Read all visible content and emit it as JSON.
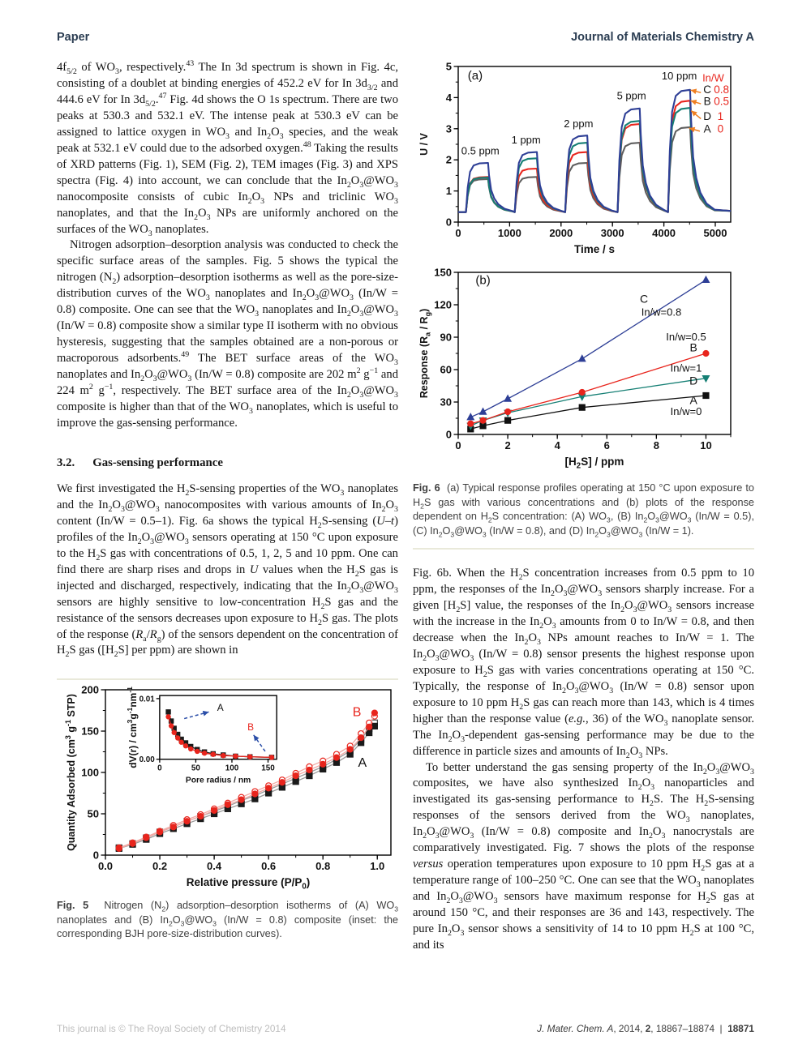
{
  "header": {
    "left": "Paper",
    "right": "Journal of Materials Chemistry A"
  },
  "left_column": {
    "para1_html": "4f<sub>5/2</sub> of WO<sub>3</sub>, respectively.<sup>43</sup> The In 3d spectrum is shown in Fig. 4c, consisting of a doublet at binding energies of 452.2 eV for In 3d<sub>3/2</sub> and 444.6 eV for In 3d<sub>5/2</sub>.<sup>47</sup> Fig. 4d shows the O 1s spectrum. There are two peaks at 530.3 and 532.1 eV. The intense peak at 530.3 eV can be assigned to lattice oxygen in WO<sub>3</sub> and In<sub>2</sub>O<sub>3</sub> species, and the weak peak at 532.1 eV could due to the adsorbed oxygen.<sup>48</sup> Taking the results of XRD patterns (Fig. 1), SEM (Fig. 2), TEM images (Fig. 3) and XPS spectra (Fig. 4) into account, we can conclude that the In<sub>2</sub>O<sub>3</sub>@WO<sub>3</sub> nanocomposite consists of cubic In<sub>2</sub>O<sub>3</sub> NPs and triclinic WO<sub>3</sub> nanoplates, and that the In<sub>2</sub>O<sub>3</sub> NPs are uniformly anchored on the surfaces of the WO<sub>3</sub> nanoplates.",
    "para2_html": "Nitrogen adsorption–desorption analysis was conducted to check the specific surface areas of the samples. Fig. 5 shows the typical the nitrogen (N<sub>2</sub>) adsorption–desorption isotherms as well as the pore-size-distribution curves of the WO<sub>3</sub> nanoplates and In<sub>2</sub>O<sub>3</sub>@WO<sub>3</sub> (In/W = 0.8) composite. One can see that the WO<sub>3</sub> nanoplates and In<sub>2</sub>O<sub>3</sub>@WO<sub>3</sub> (In/W = 0.8) composite show a similar type II isotherm with no obvious hysteresis, suggesting that the samples obtained are a non-porous or macroporous adsorbents.<sup>49</sup> The BET surface areas of the WO<sub>3</sub> nanoplates and In<sub>2</sub>O<sub>3</sub>@WO<sub>3</sub> (In/W = 0.8) composite are 202 m<sup>2</sup> g<sup>−1</sup> and 224 m<sup>2</sup> g<sup>−1</sup>, respectively. The BET surface area of the In<sub>2</sub>O<sub>3</sub>@WO<sub>3</sub> composite is higher than that of the WO<sub>3</sub> nanoplates, which is useful to improve the gas-sensing performance.",
    "section_number": "3.2.",
    "section_title": "Gas-sensing performance",
    "para3_html": "We first investigated the H<sub>2</sub>S-sensing properties of the WO<sub>3</sub> nanoplates and the In<sub>2</sub>O<sub>3</sub>@WO<sub>3</sub> nanocomposites with various amounts of In<sub>2</sub>O<sub>3</sub> content (In/W = 0.5–1). Fig. 6a shows the typical H<sub>2</sub>S-sensing (<i>U–t</i>) profiles of the In<sub>2</sub>O<sub>3</sub>@WO<sub>3</sub> sensors operating at 150 °C upon exposure to the H<sub>2</sub>S gas with concentrations of 0.5, 1, 2, 5 and 10 ppm. One can find there are sharp rises and drops in <i>U</i> values when the H<sub>2</sub>S gas is injected and discharged, respectively, indicating that the In<sub>2</sub>O<sub>3</sub>@WO<sub>3</sub> sensors are highly sensitive to low-concentration H<sub>2</sub>S gas and the resistance of the sensors decreases upon exposure to H<sub>2</sub>S gas. The plots of the response (<i>R</i><sub>a</sub>/<i>R</i><sub>g</sub>) of the sensors dependent on the concentration of H<sub>2</sub>S gas ([H<sub>2</sub>S] per ppm) are shown in",
    "fig5_caption_html": "<b>Fig. 5</b>&nbsp;&nbsp;Nitrogen (N<sub>2</sub>) adsorption–desorption isotherms of (A) WO<sub>3</sub> nanoplates and (B) In<sub>2</sub>O<sub>3</sub>@WO<sub>3</sub> (In/W = 0.8) composite (inset: the corresponding BJH pore-size-distribution curves)."
  },
  "right_column": {
    "fig6_caption_html": "<b>Fig. 6</b>&nbsp;&nbsp;(a) Typical response profiles operating at 150 °C upon exposure to H<sub>2</sub>S gas with various concentrations and (b) plots of the response dependent on H<sub>2</sub>S concentration: (A) WO<sub>3</sub>, (B) In<sub>2</sub>O<sub>3</sub>@WO<sub>3</sub> (In/W = 0.5), (C) In<sub>2</sub>O<sub>3</sub>@WO<sub>3</sub> (In/W = 0.8), and (D) In<sub>2</sub>O<sub>3</sub>@WO<sub>3</sub> (In/W = 1).",
    "para1_html": "Fig. 6b. When the H<sub>2</sub>S concentration increases from 0.5 ppm to 10 ppm, the responses of the In<sub>2</sub>O<sub>3</sub>@WO<sub>3</sub> sensors sharply increase. For a given [H<sub>2</sub>S] value, the responses of the In<sub>2</sub>O<sub>3</sub>@WO<sub>3</sub> sensors increase with the increase in the In<sub>2</sub>O<sub>3</sub> amounts from 0 to In/W = 0.8, and then decrease when the In<sub>2</sub>O<sub>3</sub> NPs amount reaches to In/W = 1. The In<sub>2</sub>O<sub>3</sub>@WO<sub>3</sub> (In/W = 0.8) sensor presents the highest response upon exposure to H<sub>2</sub>S gas with varies concentrations operating at 150 °C. Typically, the response of In<sub>2</sub>O<sub>3</sub>@WO<sub>3</sub> (In/W = 0.8) sensor upon exposure to 10 ppm H<sub>2</sub>S gas can reach more than 143, which is 4 times higher than the response value (<i>e.g.</i>, 36) of the WO<sub>3</sub> nanoplate sensor. The In<sub>2</sub>O<sub>3</sub>-dependent gas-sensing performance may be due to the difference in particle sizes and amounts of In<sub>2</sub>O<sub>3</sub> NPs.",
    "para2_html": "To better understand the gas sensing property of the In<sub>2</sub>O<sub>3</sub>@WO<sub>3</sub> composites, we have also synthesized In<sub>2</sub>O<sub>3</sub> nanoparticles and investigated its gas-sensing performance to H<sub>2</sub>S. The H<sub>2</sub>S-sensing responses of the sensors derived from the WO<sub>3</sub> nanoplates, In<sub>2</sub>O<sub>3</sub>@WO<sub>3</sub> (In/W = 0.8) composite and In<sub>2</sub>O<sub>3</sub> nanocrystals are comparatively investigated. Fig. 7 shows the plots of the response <i>versus</i> operation temperatures upon exposure to 10 ppm H<sub>2</sub>S gas at a temperature range of 100–250 °C. One can see that the WO<sub>3</sub> nanoplates and In<sub>2</sub>O<sub>3</sub>@WO<sub>3</sub> sensors have maximum response for H<sub>2</sub>S gas at around 150 °C, and their responses are 36 and 143, respectively. The pure In<sub>2</sub>O<sub>3</sub> sensor shows a sensitivity of 14 to 10 ppm H<sub>2</sub>S at 100 °C, and its"
  },
  "footer": {
    "left": "This journal is © The Royal Society of Chemistry 2014",
    "right_html": "<i>J. Mater. Chem. A</i>, 2014, <b>2</b>, 18867–18874&nbsp;&nbsp;|&nbsp;&nbsp;<b>18871</b>"
  },
  "chart_data": [
    {
      "id": "fig6a",
      "type": "line",
      "panel": "(a)",
      "xlabel": "Time / s",
      "ylabel": "U / V",
      "xlim": [
        0,
        5300
      ],
      "ylim": [
        0,
        5
      ],
      "xticks": [
        0,
        1000,
        2000,
        3000,
        4000,
        5000
      ],
      "yticks": [
        0,
        1,
        2,
        3,
        4,
        5
      ],
      "xminor": 500,
      "yminor": 0.5,
      "grid": false,
      "legend_position": "inside-right",
      "pulse": {
        "starts": [
          150,
          1100,
          2080,
          3100,
          4080
        ],
        "plateau": 430,
        "baseline": 0.32,
        "concentrations_ppm": [
          0.5,
          1,
          2,
          5,
          10
        ]
      },
      "series": [
        {
          "name": "A",
          "inw": "0",
          "color": "#5f5f5f",
          "peaks": [
            1.38,
            1.45,
            1.9,
            2.55,
            3.05
          ]
        },
        {
          "name": "B",
          "inw": "0.5",
          "color": "#e8251d",
          "peaks": [
            1.45,
            1.72,
            2.25,
            3.15,
            3.9
          ]
        },
        {
          "name": "D",
          "inw": "1",
          "color": "#157f74",
          "peaks": [
            1.43,
            2.05,
            2.55,
            3.25,
            3.67
          ]
        },
        {
          "name": "C",
          "inw": "0.8",
          "color": "#2e3f96",
          "peaks": [
            1.9,
            2.25,
            2.78,
            3.65,
            4.25
          ]
        }
      ],
      "annotations": [
        {
          "text": "(a)",
          "x": 330,
          "y": 4.58,
          "size": 15
        },
        {
          "text": "0.5 ppm",
          "x": 430,
          "y": 2.18
        },
        {
          "text": "1 ppm",
          "x": 1320,
          "y": 2.52
        },
        {
          "text": "2 ppm",
          "x": 2340,
          "y": 3.05
        },
        {
          "text": "5 ppm",
          "x": 3370,
          "y": 3.95
        },
        {
          "text": "10 ppm",
          "x": 4300,
          "y": 4.58
        },
        {
          "text": "In/W",
          "x": 4960,
          "y": 4.52,
          "color": "#e8251d"
        },
        {
          "text": "C",
          "x": 4845,
          "y": 4.14,
          "size": 13.5
        },
        {
          "text": "0.8",
          "x": 5120,
          "y": 4.14,
          "color": "#e8251d",
          "size": 13.5
        },
        {
          "text": "B",
          "x": 4845,
          "y": 3.76,
          "size": 13.5
        },
        {
          "text": "0.5",
          "x": 5120,
          "y": 3.76,
          "color": "#e8251d",
          "size": 13.5
        },
        {
          "text": "D",
          "x": 4845,
          "y": 3.28,
          "size": 13.5
        },
        {
          "text": "1",
          "x": 5100,
          "y": 3.28,
          "color": "#e8251d",
          "size": 13.5
        },
        {
          "text": "A",
          "x": 4845,
          "y": 2.88,
          "size": 13.5
        },
        {
          "text": "0",
          "x": 5100,
          "y": 2.88,
          "color": "#e8251d",
          "size": 13.5
        }
      ],
      "arrows": [
        {
          "x1": 4720,
          "y1": 4.16,
          "x2": 4520,
          "y2": 4.24,
          "color": "#ef7f22"
        },
        {
          "x1": 4720,
          "y1": 3.8,
          "x2": 4520,
          "y2": 3.9,
          "color": "#ef7f22"
        },
        {
          "x1": 4720,
          "y1": 3.32,
          "x2": 4530,
          "y2": 3.58,
          "color": "#ef7f22"
        },
        {
          "x1": 4700,
          "y1": 2.92,
          "x2": 4490,
          "y2": 3.02,
          "color": "#ef7f22"
        }
      ]
    },
    {
      "id": "fig6b",
      "type": "line",
      "panel": "(b)",
      "xlabel": "[H~2~S] / ppm",
      "ylabel": "Response (R~a~ / R~g~)",
      "xlim": [
        0,
        11
      ],
      "ylim": [
        0,
        150
      ],
      "xticks": [
        0,
        2,
        4,
        6,
        8,
        10
      ],
      "yticks": [
        0,
        30,
        60,
        90,
        120,
        150
      ],
      "xminor": 1,
      "yminor": 15,
      "grid": false,
      "x": [
        0.5,
        1,
        2,
        5,
        10
      ],
      "series": [
        {
          "name": "A",
          "label": "In/w=0",
          "color": "#111111",
          "marker": "square",
          "values": [
            5,
            8,
            13,
            25,
            36
          ]
        },
        {
          "name": "D",
          "label": "In/w=1",
          "color": "#157f74",
          "marker": "triangle-down",
          "values": [
            8,
            13,
            20,
            35,
            52
          ]
        },
        {
          "name": "B",
          "label": "In/w=0.5",
          "color": "#e8251d",
          "marker": "circle",
          "values": [
            10,
            13,
            21,
            39,
            75
          ]
        },
        {
          "name": "C",
          "label": "In/w=0.8",
          "color": "#2e3f96",
          "marker": "triangle-up",
          "values": [
            16,
            21,
            33,
            70,
            143
          ]
        }
      ],
      "annotations": [
        {
          "text": "(b)",
          "x": 1.0,
          "y": 139,
          "size": 15
        },
        {
          "text": "C",
          "x": 7.5,
          "y": 122,
          "size": 14
        },
        {
          "text": "In/w=0.8",
          "x": 8.2,
          "y": 110
        },
        {
          "text": "In/w=0.5",
          "x": 9.2,
          "y": 87
        },
        {
          "text": "B",
          "x": 9.5,
          "y": 77,
          "size": 14
        },
        {
          "text": "In/w=1",
          "x": 9.2,
          "y": 58
        },
        {
          "text": "D",
          "x": 9.5,
          "y": 46,
          "size": 14
        },
        {
          "text": "A",
          "x": 9.5,
          "y": 28,
          "size": 14
        },
        {
          "text": "In/w=0",
          "x": 9.2,
          "y": 18
        }
      ]
    },
    {
      "id": "fig5",
      "type": "scatter",
      "xlabel": "Relative pressure (P/P~0~)",
      "ylabel": "Quantity Adsorbed (cm^3^ g^-1^ STP)",
      "xlim": [
        0,
        1.05
      ],
      "ylim": [
        0,
        200
      ],
      "xticks": [
        0,
        0.2,
        0.4,
        0.6,
        0.8,
        1.0
      ],
      "xtick_labels": [
        "0.0",
        "0.2",
        "0.4",
        "0.6",
        "0.8",
        "1.0"
      ],
      "yticks": [
        0,
        50,
        100,
        150,
        200
      ],
      "xminor": 0.1,
      "yminor": 25,
      "grid": false,
      "x": [
        0.05,
        0.1,
        0.15,
        0.2,
        0.25,
        0.3,
        0.35,
        0.4,
        0.45,
        0.5,
        0.55,
        0.6,
        0.65,
        0.7,
        0.75,
        0.8,
        0.85,
        0.9,
        0.94,
        0.97,
        0.99
      ],
      "series": [
        {
          "name": "A-desorption",
          "color": "#444444",
          "line": "#9a9a9a",
          "marker": "square",
          "fill": false,
          "values": [
            9,
            14,
            21,
            28,
            34,
            41,
            47,
            53,
            59,
            66,
            72,
            79,
            86,
            93,
            100,
            107,
            116,
            126,
            140,
            153,
            160
          ]
        },
        {
          "name": "A-adsorption",
          "color": "#1a1a1a",
          "line": "#9a9a9a",
          "marker": "square",
          "fill": true,
          "values": [
            8,
            13,
            19,
            26,
            32,
            38,
            44,
            50,
            56,
            62,
            68,
            75,
            82,
            89,
            96,
            104,
            112,
            122,
            136,
            148,
            156
          ]
        },
        {
          "name": "B-desorption",
          "color": "#e8251d",
          "line": "#f2aaa5",
          "marker": "circle",
          "fill": false,
          "values": [
            9,
            15,
            22,
            29,
            36,
            43,
            49,
            56,
            63,
            70,
            77,
            84,
            91,
            99,
            107,
            114,
            122,
            132,
            147,
            160,
            168
          ]
        },
        {
          "name": "B-adsorption",
          "color": "#e8251d",
          "line": "#f2aaa5",
          "marker": "circle",
          "fill": true,
          "values": [
            8,
            14,
            21,
            28,
            34,
            41,
            47,
            54,
            61,
            67,
            74,
            81,
            88,
            96,
            103,
            110,
            118,
            128,
            142,
            155,
            172
          ]
        }
      ],
      "annotations": [
        {
          "text": "B",
          "x": 0.925,
          "y": 168,
          "color": "#e8251d",
          "size": 16
        },
        {
          "text": "A",
          "x": 0.945,
          "y": 107,
          "size": 16
        }
      ],
      "inset": {
        "xlabel": "Pore radius / nm",
        "ylabel": "dV(r) / cm^3^g^-1^nm^-1^",
        "xlim": [
          0,
          162
        ],
        "ylim": [
          0,
          0.0105
        ],
        "xticks": [
          0,
          50,
          100,
          150
        ],
        "yticks": [
          0,
          0.01
        ],
        "ytick_labels": [
          "0.00",
          "0.01"
        ],
        "x": [
          12,
          16,
          20,
          25,
          30,
          36,
          43,
          52,
          62,
          74,
          88,
          105,
          125,
          155
        ],
        "series": [
          {
            "name": "A-pore",
            "color": "#1a1a1a",
            "line": "#1a1a1a",
            "marker": "square",
            "fill": true,
            "values": [
              0.0078,
              0.0063,
              0.0051,
              0.0041,
              0.0033,
              0.0027,
              0.0021,
              0.0016,
              0.0012,
              0.0009,
              0.0007,
              0.0005,
              0.0004,
              0.0003
            ]
          },
          {
            "name": "B-pore",
            "color": "#e8251d",
            "line": "#e8251d",
            "marker": "circle",
            "fill": true,
            "values": [
              0.007,
              0.0055,
              0.0044,
              0.0035,
              0.0028,
              0.0022,
              0.0017,
              0.0013,
              0.001,
              0.0008,
              0.0006,
              0.0005,
              0.0004,
              0.0003
            ]
          }
        ],
        "annotations": [
          {
            "text": "A",
            "x": 84,
            "y": 0.008,
            "size": 12.5
          },
          {
            "text": "B",
            "x": 126,
            "y": 0.0048,
            "color": "#e8251d",
            "size": 12.5
          }
        ],
        "arrows": [
          {
            "x1": 34,
            "y1": 0.0067,
            "x2": 68,
            "y2": 0.0078,
            "color": "#2b4ea8",
            "dash": true
          },
          {
            "x1": 146,
            "y1": 0.0013,
            "x2": 130,
            "y2": 0.004,
            "color": "#2b4ea8",
            "dash": true
          }
        ]
      }
    }
  ]
}
